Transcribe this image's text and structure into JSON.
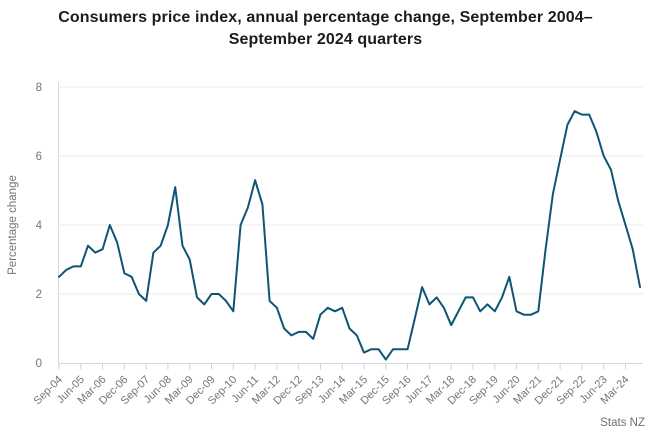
{
  "header": {
    "title": "Consumers price index, annual percentage change, September 2004–September 2024 quarters"
  },
  "source_label": "Stats NZ",
  "colors": {
    "line": "#0e5573",
    "grid": "#ebebee",
    "axis_border": "#d8d8e2",
    "tick": "#c9d0ea",
    "axis_text": "#74747c",
    "source_text": "#6f6f6f",
    "title_text": "#1c1c1c",
    "background": "#ffffff"
  },
  "chart_data": {
    "type": "line",
    "title": "Consumers price index, annual percentage change, September 2004–September 2024 quarters",
    "xlabel": "",
    "ylabel": "Percentage change",
    "ylim": [
      0,
      8
    ],
    "yticks": [
      0,
      2,
      4,
      6,
      8
    ],
    "x_tick_every": 3,
    "grid": "horizontal",
    "legend_position": "none",
    "source": "Stats NZ",
    "categories": [
      "Sep-04",
      "Dec-04",
      "Mar-05",
      "Jun-05",
      "Sep-05",
      "Dec-05",
      "Mar-06",
      "Jun-06",
      "Sep-06",
      "Dec-06",
      "Mar-07",
      "Jun-07",
      "Sep-07",
      "Dec-07",
      "Mar-08",
      "Jun-08",
      "Sep-08",
      "Dec-08",
      "Mar-09",
      "Jun-09",
      "Sep-09",
      "Dec-09",
      "Mar-10",
      "Jun-10",
      "Sep-10",
      "Dec-10",
      "Mar-11",
      "Jun-11",
      "Sep-11",
      "Dec-11",
      "Mar-12",
      "Jun-12",
      "Sep-12",
      "Dec-12",
      "Mar-13",
      "Jun-13",
      "Sep-13",
      "Dec-13",
      "Mar-14",
      "Jun-14",
      "Sep-14",
      "Dec-14",
      "Mar-15",
      "Jun-15",
      "Sep-15",
      "Dec-15",
      "Mar-16",
      "Jun-16",
      "Sep-16",
      "Dec-16",
      "Mar-17",
      "Jun-17",
      "Sep-17",
      "Dec-17",
      "Mar-18",
      "Jun-18",
      "Sep-18",
      "Dec-18",
      "Mar-19",
      "Jun-19",
      "Sep-19",
      "Dec-19",
      "Mar-20",
      "Jun-20",
      "Sep-20",
      "Dec-20",
      "Mar-21",
      "Jun-21",
      "Sep-21",
      "Dec-21",
      "Mar-22",
      "Jun-22",
      "Sep-22",
      "Dec-22",
      "Mar-23",
      "Jun-23",
      "Sep-23",
      "Dec-23",
      "Mar-24",
      "Jun-24",
      "Sep-24"
    ],
    "series": [
      {
        "name": "CPI annual percentage change",
        "values": [
          2.5,
          2.7,
          2.8,
          2.8,
          3.4,
          3.2,
          3.3,
          4.0,
          3.5,
          2.6,
          2.5,
          2.0,
          1.8,
          3.2,
          3.4,
          4.0,
          5.1,
          3.4,
          3.0,
          1.9,
          1.7,
          2.0,
          2.0,
          1.8,
          1.5,
          4.0,
          4.5,
          5.3,
          4.6,
          1.8,
          1.6,
          1.0,
          0.8,
          0.9,
          0.9,
          0.7,
          1.4,
          1.6,
          1.5,
          1.6,
          1.0,
          0.8,
          0.3,
          0.4,
          0.4,
          0.1,
          0.4,
          0.4,
          0.4,
          1.3,
          2.2,
          1.7,
          1.9,
          1.6,
          1.1,
          1.5,
          1.9,
          1.9,
          1.5,
          1.7,
          1.5,
          1.9,
          2.5,
          1.5,
          1.4,
          1.4,
          1.5,
          3.3,
          4.9,
          5.9,
          6.9,
          7.3,
          7.2,
          7.2,
          6.7,
          6.0,
          5.6,
          4.7,
          4.0,
          3.3,
          2.2
        ]
      }
    ]
  }
}
